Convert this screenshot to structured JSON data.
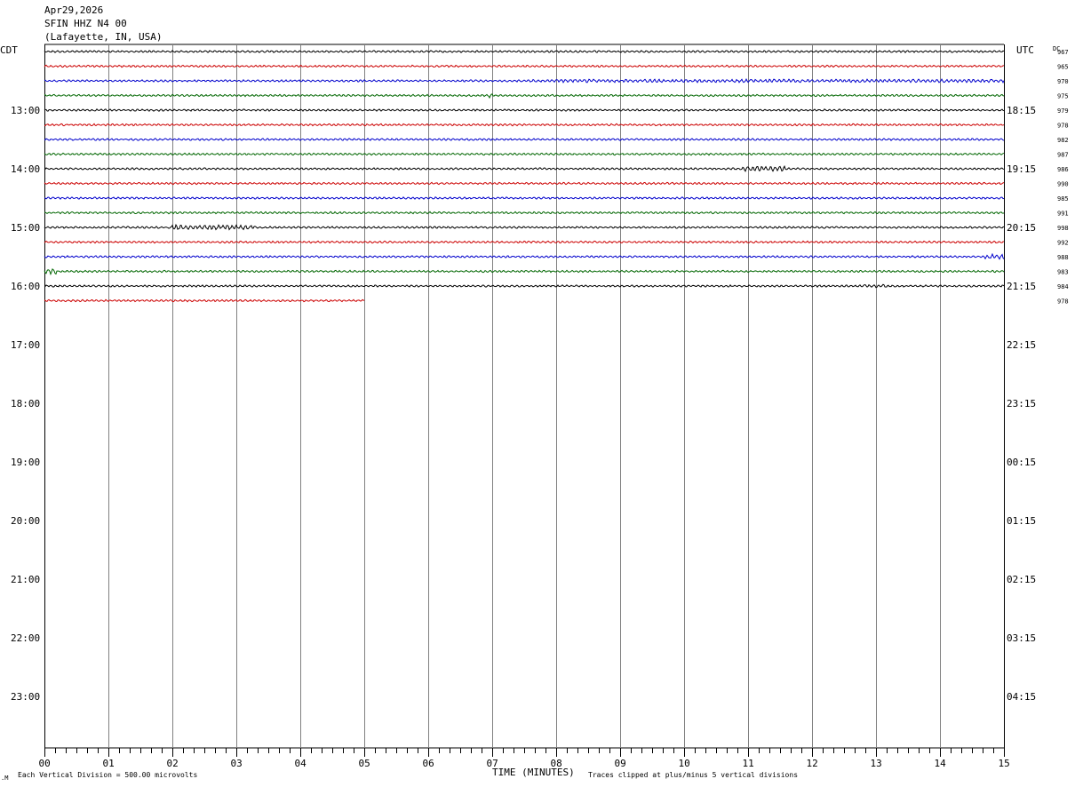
{
  "header": {
    "date": "Apr29,2026",
    "station": "SFIN HHZ N4 00",
    "location": "(Lafayette, IN, USA)"
  },
  "left_tz_label": "CDT",
  "right_tz_label": "UTC",
  "dc_label": "DC",
  "footer": {
    "scale_note": "Each Vertical Division =  500.00 microvolts",
    "xlabel": "TIME (MINUTES)",
    "clip_note": "Traces clipped at plus/minus 5 vertical divisions"
  },
  "colors": {
    "trace_cycle": [
      "#000000",
      "#cc0000",
      "#0000cc",
      "#006600"
    ],
    "grid": "#808080"
  },
  "chart_data": {
    "type": "line",
    "description_free": true,
    "x_ticks": [
      "00",
      "01",
      "02",
      "03",
      "04",
      "05",
      "06",
      "07",
      "08",
      "09",
      "10",
      "11",
      "12",
      "13",
      "14",
      "15"
    ],
    "x_range": [
      0,
      15
    ],
    "left_hour_labels": [
      "13:00",
      "14:00",
      "15:00",
      "16:00",
      "17:00",
      "18:00",
      "19:00",
      "20:00",
      "21:00",
      "22:00",
      "23:00"
    ],
    "right_hour_labels": [
      "18:15",
      "19:15",
      "20:15",
      "21:15",
      "22:15",
      "23:15",
      "00:15",
      "01:15",
      "02:15",
      "03:15",
      "04:15"
    ],
    "rows_per_hour": 4,
    "first_labeled_row": 4,
    "total_rows": 48,
    "traces": [
      {
        "row": 0,
        "dc": "967",
        "end_minute": 15,
        "events": []
      },
      {
        "row": 1,
        "dc": "965",
        "end_minute": 15,
        "events": []
      },
      {
        "row": 2,
        "dc": "970",
        "end_minute": 15,
        "events": [
          {
            "start": 7.5,
            "end": 15,
            "amp": 1.6
          }
        ]
      },
      {
        "row": 3,
        "dc": "975",
        "end_minute": 15,
        "events": [
          {
            "start": 6.9,
            "end": 7.0,
            "amp": 2.5
          }
        ]
      },
      {
        "row": 4,
        "dc": "979",
        "end_minute": 15,
        "events": []
      },
      {
        "row": 5,
        "dc": "978",
        "end_minute": 15,
        "events": []
      },
      {
        "row": 6,
        "dc": "982",
        "end_minute": 15,
        "events": []
      },
      {
        "row": 7,
        "dc": "987",
        "end_minute": 15,
        "events": []
      },
      {
        "row": 8,
        "dc": "986",
        "end_minute": 15,
        "events": [
          {
            "start": 10.9,
            "end": 11.6,
            "amp": 2.4
          }
        ]
      },
      {
        "row": 9,
        "dc": "990",
        "end_minute": 15,
        "events": []
      },
      {
        "row": 10,
        "dc": "985",
        "end_minute": 15,
        "events": []
      },
      {
        "row": 11,
        "dc": "991",
        "end_minute": 15,
        "events": []
      },
      {
        "row": 12,
        "dc": "998",
        "end_minute": 15,
        "events": [
          {
            "start": 2.0,
            "end": 3.3,
            "amp": 2.6
          }
        ]
      },
      {
        "row": 13,
        "dc": "992",
        "end_minute": 15,
        "events": []
      },
      {
        "row": 14,
        "dc": "988",
        "end_minute": 15,
        "events": [
          {
            "start": 14.7,
            "end": 15,
            "amp": 2.8
          }
        ]
      },
      {
        "row": 15,
        "dc": "983",
        "end_minute": 15,
        "events": [
          {
            "start": 0.0,
            "end": 0.2,
            "amp": 3.0
          }
        ]
      },
      {
        "row": 16,
        "dc": "984",
        "end_minute": 15,
        "events": [
          {
            "start": 12.8,
            "end": 13.2,
            "amp": 1.6
          }
        ]
      },
      {
        "row": 17,
        "dc": "978",
        "end_minute": 5,
        "events": []
      }
    ]
  }
}
